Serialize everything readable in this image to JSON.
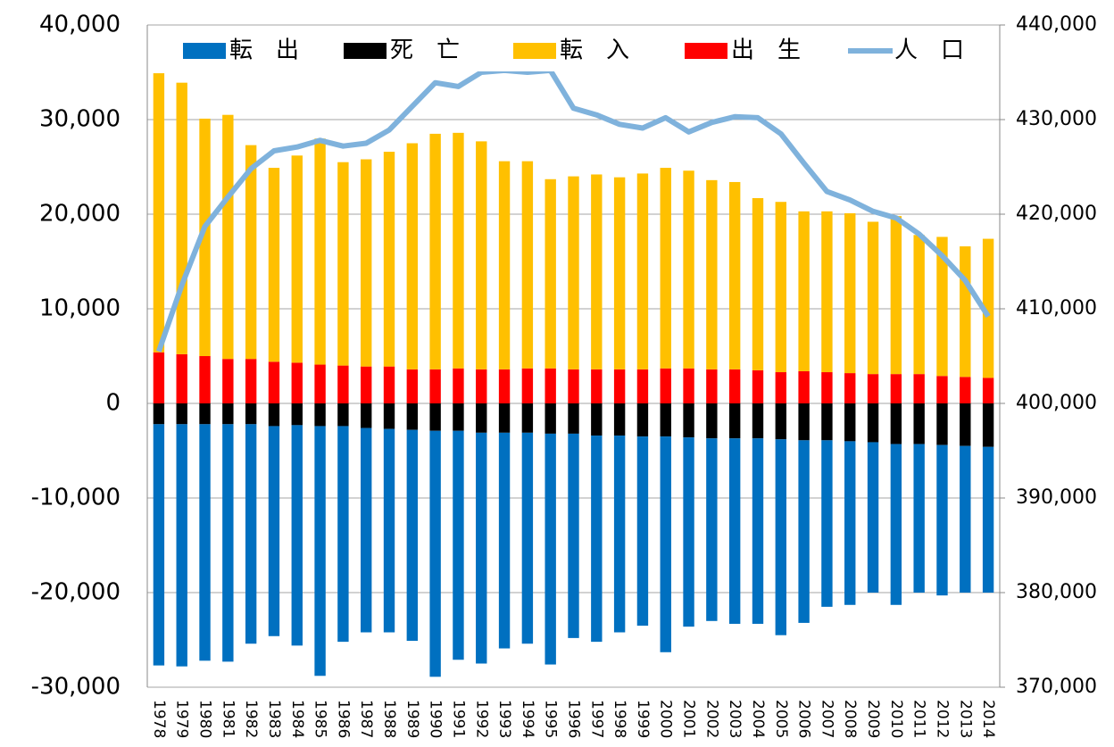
{
  "chart_data": {
    "type": "bar",
    "categories": [
      "1978",
      "1979",
      "1980",
      "1981",
      "1982",
      "1983",
      "1984",
      "1985",
      "1986",
      "1987",
      "1988",
      "1989",
      "1990",
      "1991",
      "1992",
      "1993",
      "1994",
      "1995",
      "1996",
      "1997",
      "1998",
      "1999",
      "2000",
      "2001",
      "2002",
      "2003",
      "2004",
      "2005",
      "2006",
      "2007",
      "2008",
      "2009",
      "2010",
      "2011",
      "2012",
      "2013",
      "2014"
    ],
    "series": [
      {
        "name": "転　出",
        "color": "#0070c0",
        "values": [
          -25500,
          -25600,
          -25000,
          -25100,
          -23200,
          -22200,
          -23300,
          -26400,
          -22800,
          -21600,
          -21500,
          -22300,
          -26000,
          -24200,
          -24400,
          -22800,
          -22300,
          -24400,
          -21600,
          -21800,
          -20800,
          -20000,
          -22800,
          -20000,
          -19300,
          -19600,
          -19600,
          -20700,
          -19300,
          -17600,
          -17300,
          -15900,
          -17000,
          -15700,
          -15900,
          -15500,
          -15400
        ]
      },
      {
        "name": "死　亡",
        "color": "#000000",
        "values": [
          -2200,
          -2200,
          -2200,
          -2200,
          -2200,
          -2400,
          -2300,
          -2400,
          -2400,
          -2600,
          -2700,
          -2800,
          -2900,
          -2900,
          -3100,
          -3100,
          -3100,
          -3200,
          -3200,
          -3400,
          -3400,
          -3500,
          -3500,
          -3600,
          -3700,
          -3700,
          -3700,
          -3800,
          -3900,
          -3900,
          -4000,
          -4100,
          -4300,
          -4300,
          -4400,
          -4500,
          -4600
        ]
      },
      {
        "name": "転　入",
        "color": "#ffc000",
        "values": [
          29500,
          28700,
          25100,
          25800,
          22600,
          20500,
          21900,
          23900,
          21500,
          21900,
          22700,
          23900,
          24900,
          24900,
          24100,
          22000,
          21900,
          20000,
          20400,
          20600,
          20300,
          20700,
          21200,
          20900,
          20000,
          19800,
          18200,
          18000,
          16900,
          17000,
          16900,
          16100,
          16700,
          14700,
          14700,
          13800,
          14700
        ]
      },
      {
        "name": "出　生",
        "color": "#ff0000",
        "values": [
          5400,
          5200,
          5000,
          4700,
          4700,
          4400,
          4300,
          4100,
          4000,
          3900,
          3900,
          3600,
          3600,
          3700,
          3600,
          3600,
          3700,
          3700,
          3600,
          3600,
          3600,
          3600,
          3700,
          3700,
          3600,
          3600,
          3500,
          3300,
          3400,
          3300,
          3200,
          3100,
          3100,
          3100,
          2900,
          2800,
          2700
        ]
      },
      {
        "name": "人　口",
        "color": "#7fb2dc",
        "type": "line",
        "axis": "y2",
        "values": [
          405500,
          412500,
          418700,
          421800,
          424800,
          426700,
          427100,
          427800,
          427200,
          427500,
          428900,
          431400,
          433900,
          433500,
          435000,
          435200,
          435000,
          435200,
          431200,
          430500,
          429500,
          429100,
          430200,
          428700,
          429700,
          430300,
          430200,
          428500,
          425400,
          422400,
          421500,
          420300,
          419600,
          417900,
          415600,
          413000,
          409200
        ]
      }
    ],
    "ylim": [
      -30000,
      40000
    ],
    "yticks": [
      {
        "value": -30000,
        "label": "-30,000"
      },
      {
        "value": -20000,
        "label": "-20,000"
      },
      {
        "value": -10000,
        "label": "-10,000"
      },
      0,
      {
        "value": 10000,
        "label": "10,000"
      },
      {
        "value": 20000,
        "label": "20,000"
      },
      {
        "value": 30000,
        "label": "30,000"
      },
      {
        "value": 40000,
        "label": "40,000"
      }
    ],
    "y2lim": [
      370000,
      440000
    ],
    "y2ticks": [
      {
        "value": 370000,
        "label": "370,000"
      },
      {
        "value": 380000,
        "label": "380,000"
      },
      {
        "value": 390000,
        "label": "390,000"
      },
      {
        "value": 400000,
        "label": "400,000"
      },
      {
        "value": 410000,
        "label": "410,000"
      },
      {
        "value": 420000,
        "label": "420,000"
      },
      {
        "value": 430000,
        "label": "430,000"
      },
      {
        "value": 440000,
        "label": "440,000"
      }
    ],
    "grid": true,
    "legend": "top"
  }
}
